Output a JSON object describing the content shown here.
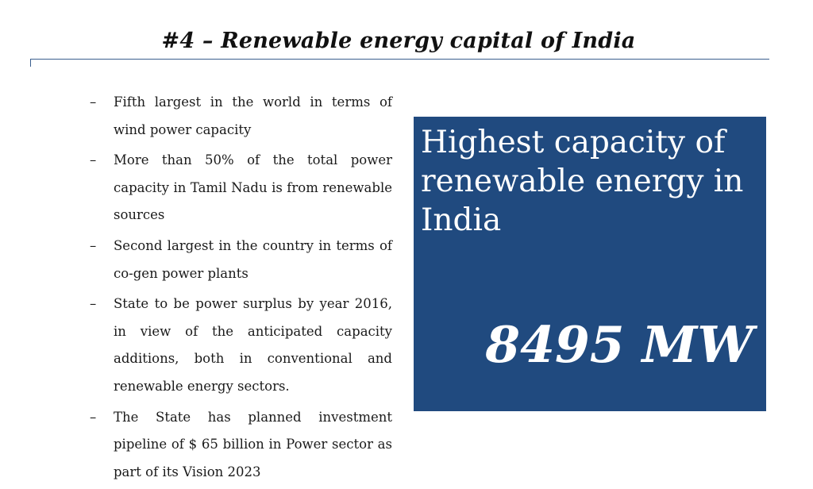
{
  "slide": {
    "title": "#4 – Renewable energy capital of India"
  },
  "bullets": [
    {
      "marker": "–",
      "text": "Fifth largest in the world in terms of wind power capacity"
    },
    {
      "marker": "–",
      "text": "More than 50% of the total power capacity in Tamil Nadu is from renewable sources"
    },
    {
      "marker": "–",
      "text": "Second largest in the country in terms of co-gen power plants"
    },
    {
      "marker": "–",
      "text": "State to be power surplus by year 2016, in view of the anticipated capacity additions, both in conventional and renewable energy sectors."
    },
    {
      "marker": "–",
      "text": "The State has planned investment pipeline of $ 65 billion in Power sector as part of its Vision 2023"
    }
  ],
  "highlight": {
    "heading": "Highest capacity of renewable energy in India",
    "figure": "8495 MW",
    "background_color": "#204a7f",
    "text_color": "#ffffff"
  },
  "colors": {
    "rule": "#3a5f8f"
  }
}
